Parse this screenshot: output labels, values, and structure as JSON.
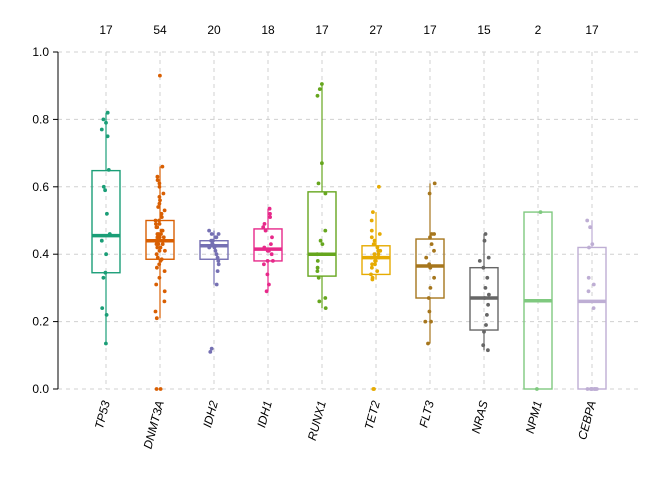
{
  "chart_data": {
    "type": "box",
    "title": "",
    "xlabel": "",
    "ylabel": "",
    "ylim": [
      0,
      1
    ],
    "yticks": [
      "0.0",
      "0.2",
      "0.4",
      "0.6",
      "0.8",
      "1.0"
    ],
    "grid": true,
    "categories": [
      "TP53",
      "DNMT3A",
      "IDH2",
      "IDH1",
      "RUNX1",
      "TET2",
      "FLT3",
      "NRAS",
      "NPM1",
      "CEBPA"
    ],
    "counts": [
      "17",
      "54",
      "20",
      "18",
      "17",
      "27",
      "17",
      "15",
      "2",
      "17"
    ],
    "colors": [
      "#1b9e77",
      "#d95f02",
      "#7570b3",
      "#e7298a",
      "#66a61e",
      "#e6ab02",
      "#a6761d",
      "#666666",
      "#7fc97f",
      "#beaed4"
    ],
    "boxes": [
      {
        "q1": 0.345,
        "median": 0.455,
        "q3": 0.648,
        "whisker_low": 0.135,
        "whisker_high": 0.82,
        "points": [
          0.135,
          0.22,
          0.24,
          0.33,
          0.345,
          0.4,
          0.44,
          0.46,
          0.52,
          0.59,
          0.6,
          0.65,
          0.75,
          0.77,
          0.79,
          0.8,
          0.82
        ]
      },
      {
        "q1": 0.385,
        "median": 0.44,
        "q3": 0.5,
        "whisker_low": 0.21,
        "whisker_high": 0.66,
        "points": [
          0.0,
          0.0,
          0.93,
          0.21,
          0.23,
          0.26,
          0.29,
          0.31,
          0.33,
          0.35,
          0.36,
          0.37,
          0.38,
          0.385,
          0.39,
          0.4,
          0.41,
          0.41,
          0.42,
          0.42,
          0.43,
          0.43,
          0.43,
          0.44,
          0.44,
          0.44,
          0.44,
          0.45,
          0.45,
          0.45,
          0.46,
          0.46,
          0.46,
          0.47,
          0.47,
          0.48,
          0.48,
          0.49,
          0.49,
          0.5,
          0.5,
          0.51,
          0.52,
          0.53,
          0.54,
          0.55,
          0.56,
          0.57,
          0.58,
          0.6,
          0.61,
          0.62,
          0.63,
          0.66
        ]
      },
      {
        "q1": 0.385,
        "median": 0.425,
        "q3": 0.44,
        "whisker_low": 0.31,
        "whisker_high": 0.47,
        "points": [
          0.11,
          0.12,
          0.31,
          0.35,
          0.37,
          0.38,
          0.39,
          0.4,
          0.41,
          0.42,
          0.42,
          0.43,
          0.43,
          0.44,
          0.44,
          0.45,
          0.45,
          0.46,
          0.46,
          0.47
        ]
      },
      {
        "q1": 0.38,
        "median": 0.415,
        "q3": 0.475,
        "whisker_low": 0.29,
        "whisker_high": 0.535,
        "points": [
          0.29,
          0.31,
          0.34,
          0.37,
          0.38,
          0.38,
          0.4,
          0.41,
          0.41,
          0.42,
          0.43,
          0.45,
          0.47,
          0.48,
          0.49,
          0.51,
          0.52,
          0.535
        ]
      },
      {
        "q1": 0.335,
        "median": 0.4,
        "q3": 0.585,
        "whisker_low": 0.24,
        "whisker_high": 0.905,
        "points": [
          0.24,
          0.26,
          0.27,
          0.33,
          0.35,
          0.38,
          0.4,
          0.43,
          0.47,
          0.58,
          0.61,
          0.67,
          0.87,
          0.89,
          0.905,
          0.36,
          0.44
        ]
      },
      {
        "q1": 0.34,
        "median": 0.39,
        "q3": 0.425,
        "whisker_low": 0.325,
        "whisker_high": 0.525,
        "points": [
          0.0,
          0.0,
          0.6,
          0.325,
          0.33,
          0.34,
          0.35,
          0.36,
          0.37,
          0.37,
          0.38,
          0.38,
          0.39,
          0.39,
          0.39,
          0.4,
          0.4,
          0.41,
          0.41,
          0.42,
          0.43,
          0.44,
          0.45,
          0.46,
          0.47,
          0.5,
          0.525
        ]
      },
      {
        "q1": 0.27,
        "median": 0.365,
        "q3": 0.445,
        "whisker_low": 0.135,
        "whisker_high": 0.61,
        "points": [
          0.135,
          0.2,
          0.2,
          0.23,
          0.27,
          0.3,
          0.33,
          0.36,
          0.37,
          0.39,
          0.41,
          0.43,
          0.45,
          0.46,
          0.46,
          0.58,
          0.61
        ]
      },
      {
        "q1": 0.175,
        "median": 0.27,
        "q3": 0.36,
        "whisker_low": 0.115,
        "whisker_high": 0.46,
        "points": [
          0.115,
          0.13,
          0.17,
          0.19,
          0.22,
          0.25,
          0.27,
          0.28,
          0.3,
          0.33,
          0.36,
          0.38,
          0.39,
          0.44,
          0.46
        ]
      },
      {
        "q1": 0.0,
        "median": 0.262,
        "q3": 0.525,
        "whisker_low": 0.0,
        "whisker_high": 0.525,
        "points": [
          0.0,
          0.525
        ]
      },
      {
        "q1": 0.0,
        "median": 0.26,
        "q3": 0.42,
        "whisker_low": 0.0,
        "whisker_high": 0.5,
        "points": [
          0.0,
          0.0,
          0.0,
          0.0,
          0.0,
          0.0,
          0.0,
          0.0,
          0.0,
          0.24,
          0.29,
          0.31,
          0.33,
          0.42,
          0.43,
          0.48,
          0.5
        ]
      }
    ]
  }
}
